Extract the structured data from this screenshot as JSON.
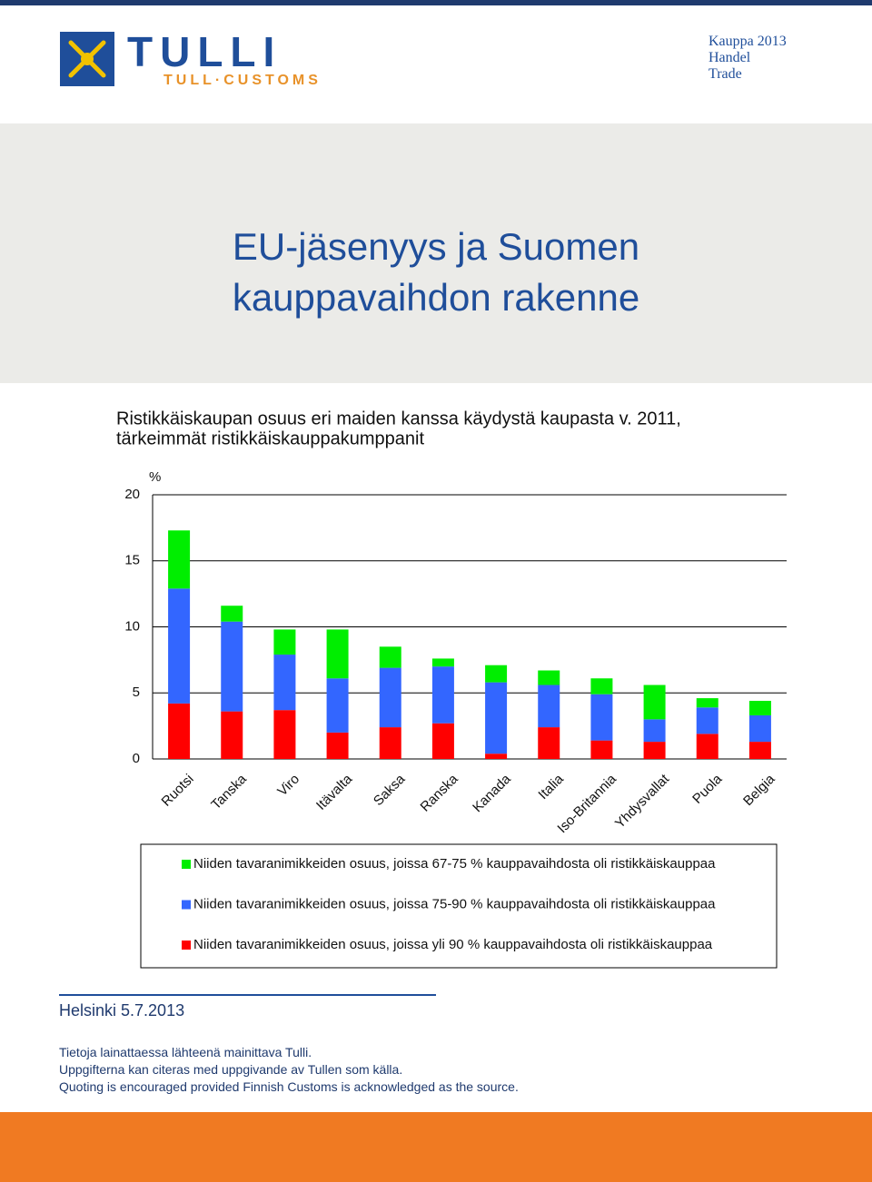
{
  "header": {
    "brand": "TULLI",
    "brand_sub": "TULL·CUSTOMS",
    "edition": [
      "Kauppa 2013",
      "Handel",
      "Trade"
    ]
  },
  "title": [
    "EU-jäsenyys ja Suomen",
    "kauppavaihdon rakenne"
  ],
  "chart_data": {
    "type": "bar",
    "stacked": true,
    "title": [
      "Ristikkäiskaupan osuus eri maiden kanssa käydystä kaupasta v. 2011,",
      "tärkeimmät ristikkäiskauppakumppanit"
    ],
    "y_label": "%",
    "categories": [
      "Ruotsi",
      "Tanska",
      "Viro",
      "Itävalta",
      "Saksa",
      "Ranska",
      "Kanada",
      "Italia",
      "Iso-Britannia",
      "Yhdysvallat",
      "Puola",
      "Belgia"
    ],
    "series": [
      {
        "name": "Niiden tavaranimikkeiden osuus, joissa 67-75 % kauppavaihdosta oli ristikkäiskauppaa",
        "color": "#00ee00",
        "values": [
          4.4,
          1.2,
          1.9,
          3.7,
          1.6,
          0.6,
          1.3,
          1.1,
          1.2,
          2.6,
          0.7,
          1.1
        ]
      },
      {
        "name": "Niiden tavaranimikkeiden osuus, joissa 75-90 % kauppavaihdosta oli ristikkäiskauppaa",
        "color": "#3366ff",
        "values": [
          8.7,
          6.8,
          4.2,
          4.1,
          4.5,
          4.3,
          5.4,
          3.2,
          3.5,
          1.7,
          2.0,
          2.0
        ]
      },
      {
        "name": "Niiden tavaranimikkeiden osuus, joissa yli 90 % kauppavaihdosta oli ristikkäiskauppaa",
        "color": "#ff0000",
        "values": [
          4.2,
          3.6,
          3.7,
          2.0,
          2.4,
          2.7,
          0.4,
          2.4,
          1.4,
          1.3,
          1.9,
          1.3
        ]
      }
    ],
    "ylim": [
      0,
      20
    ],
    "yticks": [
      0,
      5,
      10,
      15,
      20
    ],
    "grid": true
  },
  "footer": {
    "place_date": "Helsinki 5.7.2013",
    "notes": [
      "Tietoja lainattaessa lähteenä mainittava Tulli.",
      "Uppgifterna kan citeras med uppgivande av Tullen som källa.",
      "Quoting is encouraged provided Finnish Customs is acknowledged as the source."
    ]
  }
}
